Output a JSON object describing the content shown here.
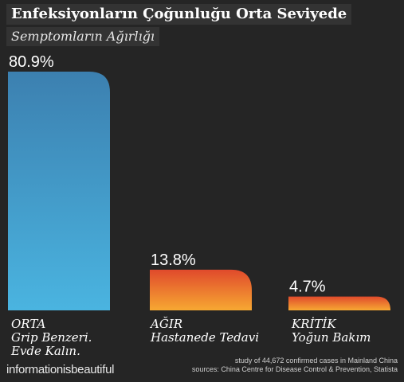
{
  "header": {
    "title": "Enfeksiyonların Çoğunluğu Orta Seviyede",
    "subtitle": "Semptomların Ağırlığı"
  },
  "chart_data": {
    "type": "bar",
    "categories": [
      "ORTA",
      "AĞIR",
      "KRİTİK"
    ],
    "category_descriptions": [
      "Grip Benzeri. Evde Kalın.",
      "Hastanede Tedavi",
      "Yoğun Bakım"
    ],
    "values": [
      80.9,
      13.8,
      4.7
    ],
    "value_labels": [
      "80.9%",
      "13.8%",
      "4.7%"
    ],
    "unit": "%",
    "title": "Enfeksiyonların Çoğunluğu Orta Seviyede",
    "subtitle": "Semptomların Ağırlığı",
    "xlabel": "",
    "ylabel": "",
    "ylim": [
      0,
      80.9
    ],
    "grid": false,
    "legend": "none",
    "colors": {
      "ORTA": [
        "#3C80B0",
        "#4AB4E0"
      ],
      "AĞIR": [
        "#E04A2C",
        "#F7A832"
      ],
      "KRİTİK": [
        "#E04A2C",
        "#F7A832"
      ]
    }
  },
  "footer": {
    "brand": "informationisbeautiful",
    "source_line1": "study of 44,672 confirmed cases in Mainland China",
    "source_line2": "sources: China Centre for Disease Control & Prevention, Statista"
  },
  "labels": [
    {
      "lines": [
        "ORTA",
        "Grip Benzeri.",
        "Evde Kalın."
      ]
    },
    {
      "lines": [
        "AĞIR",
        "Hastanede Tedavi"
      ]
    },
    {
      "lines": [
        "KRİTİK",
        "Yoğun Bakım"
      ]
    }
  ]
}
